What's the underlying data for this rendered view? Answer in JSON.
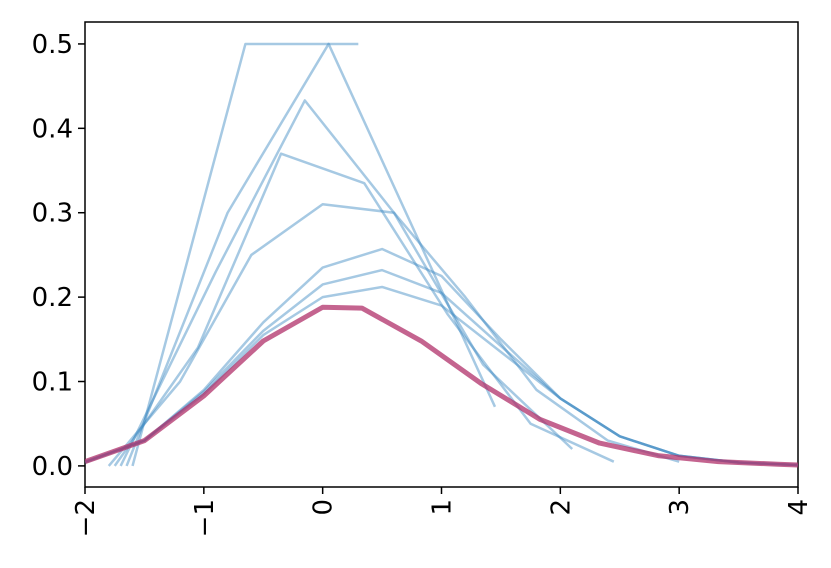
{
  "chart_data": {
    "type": "line",
    "xlim": [
      -2,
      4
    ],
    "ylim": [
      -0.025,
      0.526
    ],
    "xticks": [
      {
        "value": -2,
        "label": "−2"
      },
      {
        "value": -1,
        "label": "−1"
      },
      0,
      1,
      2,
      3,
      4
    ],
    "yticks": [
      {
        "value": 0,
        "label": "0.0"
      },
      0.1,
      0.2,
      0.3,
      0.4,
      0.5
    ],
    "series": [
      {
        "color": "#3a87c0",
        "x": [
          -1.6,
          -0.65,
          0.3
        ],
        "values": [
          0,
          0.5,
          0.5
        ]
      },
      {
        "color": "#3a87c0",
        "x": [
          -1.65,
          -0.8,
          0.05,
          1.45
        ],
        "values": [
          0,
          0.3,
          0.5,
          0.07
        ]
      },
      {
        "color": "#3a87c0",
        "x": [
          -1.7,
          -0.9,
          -0.15,
          0.6,
          1.35,
          2.1
        ],
        "values": [
          0,
          0.23,
          0.433,
          0.3,
          0.12,
          0.02
        ]
      },
      {
        "color": "#3a87c0",
        "x": [
          -1.75,
          -1.05,
          -0.35,
          0.35,
          1.05,
          1.75,
          2.45
        ],
        "values": [
          0,
          0.14,
          0.37,
          0.335,
          0.18,
          0.05,
          0.005
        ]
      },
      {
        "color": "#3a87c0",
        "x": [
          -1.8,
          -1.2,
          -0.6,
          0,
          0.6,
          1.2,
          1.8,
          2.4,
          3
        ],
        "values": [
          0,
          0.1,
          0.25,
          0.31,
          0.3,
          0.2,
          0.09,
          0.03,
          0.005
        ]
      },
      {
        "color": "#3a87c0",
        "x": [
          -2,
          -1.5,
          -1,
          -0.5,
          0,
          0.5,
          1,
          1.5,
          2,
          2.5,
          3,
          3.5,
          4
        ],
        "values": [
          0.004,
          0.03,
          0.09,
          0.17,
          0.235,
          0.257,
          0.225,
          0.15,
          0.08,
          0.035,
          0.012,
          0.004,
          0.001
        ]
      },
      {
        "color": "#3a87c0",
        "x": [
          -2,
          -1.5,
          -1,
          -0.5,
          0,
          0.5,
          1,
          1.5,
          2,
          2.5,
          3,
          3.5,
          4
        ],
        "values": [
          0.005,
          0.03,
          0.088,
          0.16,
          0.215,
          0.232,
          0.205,
          0.142,
          0.08,
          0.035,
          0.012,
          0.004,
          0.001
        ]
      },
      {
        "color": "#3a87c0",
        "x": [
          -2,
          -1.5,
          -1,
          -0.5,
          0,
          0.5,
          1,
          1.5,
          2,
          2.5,
          3,
          3.5,
          4
        ],
        "values": [
          0.005,
          0.03,
          0.085,
          0.155,
          0.2,
          0.212,
          0.19,
          0.135,
          0.08,
          0.035,
          0.012,
          0.004,
          0.001
        ]
      },
      {
        "color": "#b0306a",
        "x": [
          -2,
          -1.5,
          -1,
          -0.5,
          0,
          0.33,
          0.83,
          1.33,
          1.83,
          2.33,
          2.83,
          3.33,
          3.83,
          4
        ],
        "values": [
          0.005,
          0.03,
          0.083,
          0.148,
          0.188,
          0.187,
          0.148,
          0.098,
          0.055,
          0.027,
          0.012,
          0.005,
          0.002,
          0.001
        ]
      }
    ]
  }
}
